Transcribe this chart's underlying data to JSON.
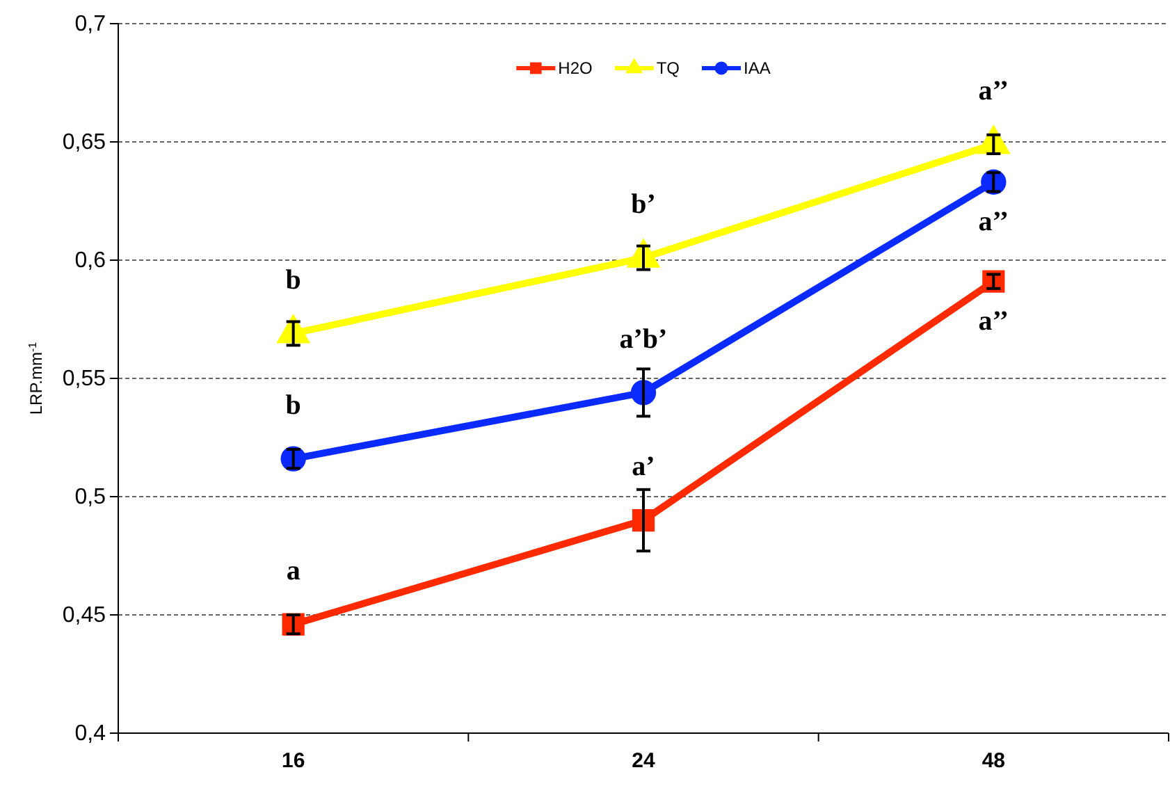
{
  "chart_data": {
    "type": "line",
    "ylabel": "LRP.mm$^{-1}$",
    "categories": [
      "16",
      "24",
      "48"
    ],
    "series": [
      {
        "name": "H2O",
        "color": "#ff2a00",
        "marker": "square",
        "values": [
          0.446,
          0.49,
          0.591
        ],
        "errors": [
          0.004,
          0.013,
          0.003
        ]
      },
      {
        "name": "TQ",
        "color": "#ffff00",
        "marker": "triangle",
        "values": [
          0.569,
          0.601,
          0.649
        ],
        "errors": [
          0.005,
          0.005,
          0.004
        ]
      },
      {
        "name": "IAA",
        "color": "#0a2aff",
        "marker": "circle",
        "values": [
          0.516,
          0.544,
          0.633
        ],
        "errors": [
          0.004,
          0.01,
          0.004
        ]
      }
    ],
    "ylim": [
      0.4,
      0.7
    ],
    "yticks": [
      {
        "value": 0.4,
        "label": "0,4"
      },
      {
        "value": 0.45,
        "label": "0,45"
      },
      {
        "value": 0.5,
        "label": "0,5"
      },
      {
        "value": 0.55,
        "label": "0,55"
      },
      {
        "value": 0.6,
        "label": "0,6"
      },
      {
        "value": 0.65,
        "label": "0,65"
      },
      {
        "value": 0.7,
        "label": "0,7"
      }
    ],
    "grid": "y",
    "legend": "top",
    "line_style": "solid",
    "annotations": [
      {
        "text": "b",
        "x": "16",
        "y": 0.569
      },
      {
        "text": "b",
        "x": "16",
        "y": 0.516
      },
      {
        "text": "a",
        "x": "16",
        "y": 0.446
      },
      {
        "text": "b’",
        "x": "24",
        "y": 0.601
      },
      {
        "text": "a’b’",
        "x": "24",
        "y": 0.544
      },
      {
        "text": "a’",
        "x": "24",
        "y": 0.49
      },
      {
        "text": "a’’",
        "x": "48",
        "y": 0.649
      },
      {
        "text": "a’’",
        "x": "48",
        "y": 0.633
      },
      {
        "text": "a’’",
        "x": "48",
        "y": 0.591
      }
    ]
  }
}
